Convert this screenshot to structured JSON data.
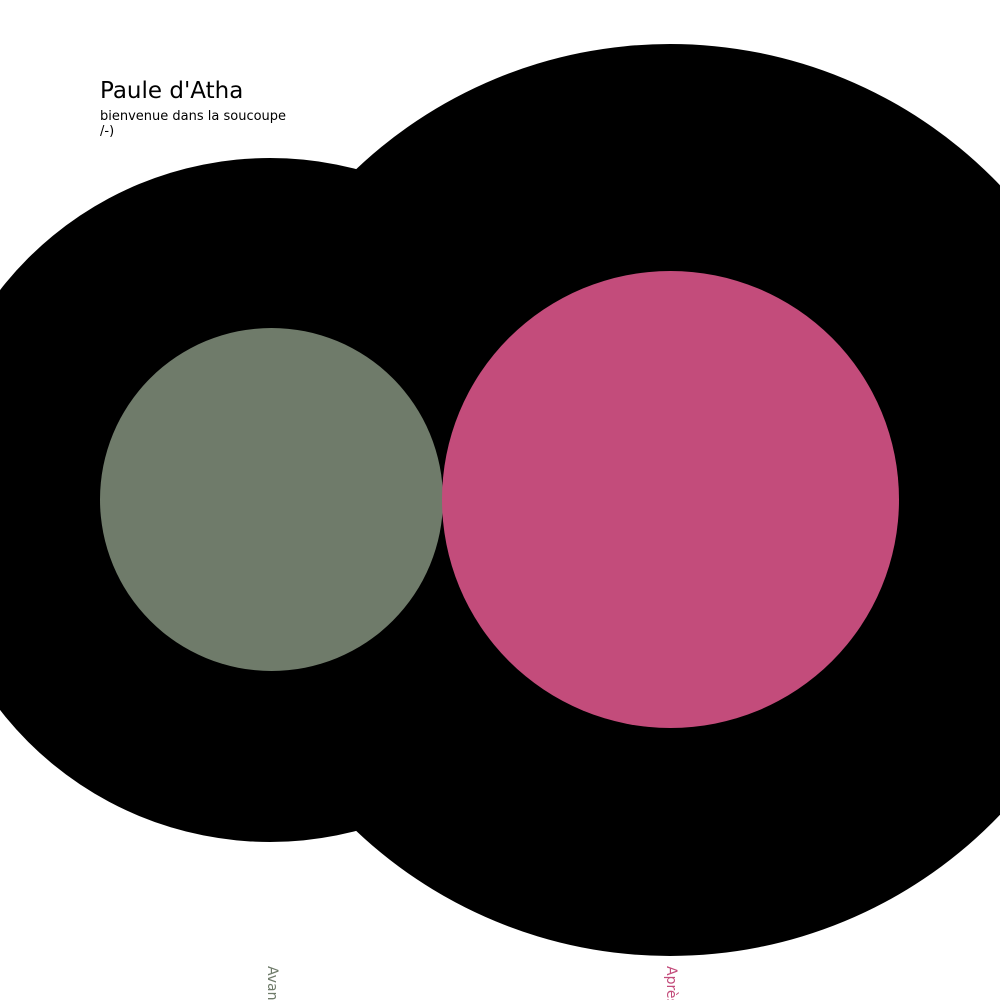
{
  "header": {
    "title": "Paule d'Atha",
    "subtitle": "bienvenue dans la soucoupe\n/-)"
  },
  "discs": {
    "left": {
      "label": "Avant",
      "color": "#6f7b6a",
      "ring_color": "#000000"
    },
    "right": {
      "label": "Après",
      "color": "#c34c7b",
      "ring_color": "#000000"
    }
  }
}
